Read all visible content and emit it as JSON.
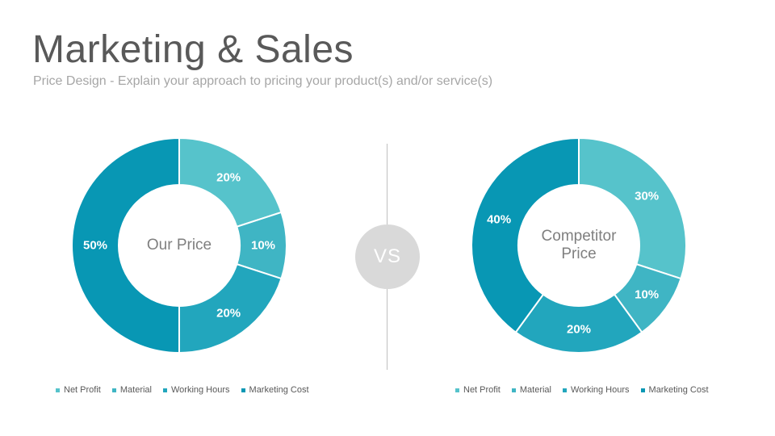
{
  "header": {
    "title": "Marketing & Sales",
    "subtitle": "Price Design - Explain your approach to pricing your product(s) and/or service(s)"
  },
  "vs_label": "VS",
  "colors": [
    "#56c3cb",
    "#3fb5c4",
    "#22a6bd",
    "#0897b4"
  ],
  "chart_data": [
    {
      "type": "pie",
      "center_label": [
        "Our Price"
      ],
      "categories": [
        "Net Profit",
        "Material",
        "Working Hours",
        "Marketing Cost"
      ],
      "values": [
        20,
        10,
        20,
        50
      ],
      "value_labels": [
        "20%",
        "10%",
        "20%",
        "50%"
      ],
      "legend_position": "bottom"
    },
    {
      "type": "pie",
      "center_label": [
        "Competitor",
        "Price"
      ],
      "categories": [
        "Net Profit",
        "Material",
        "Working Hours",
        "Marketing Cost"
      ],
      "values": [
        30,
        10,
        20,
        40
      ],
      "value_labels": [
        "30%",
        "10%",
        "20%",
        "40%"
      ],
      "legend_position": "bottom"
    }
  ]
}
